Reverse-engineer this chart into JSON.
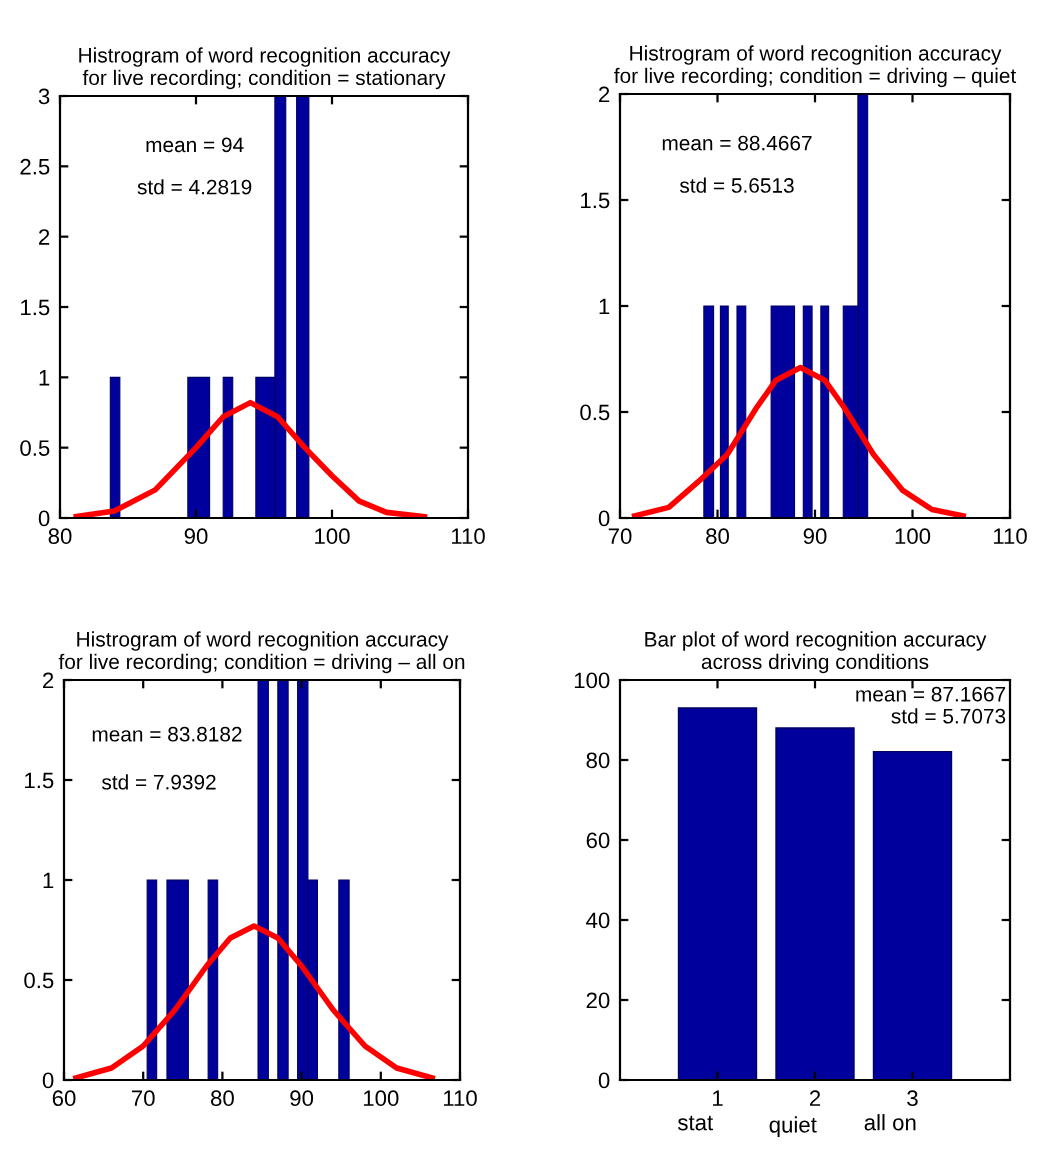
{
  "chart_data": [
    {
      "type": "histogram",
      "title": "Histrogram of word recognition accuracy\nfor live recording; condition = stationary",
      "bins": [
        83.7,
        84.4,
        89.4,
        91.0,
        92.0,
        92.7,
        94.4,
        95.8,
        96.6,
        97.4,
        98.3
      ],
      "values": [
        1,
        0,
        1,
        0,
        1,
        0,
        1,
        3,
        0,
        3
      ],
      "color": "#00009c",
      "series": [
        {
          "type": "line",
          "color": "#ff0000",
          "x": [
            81.2,
            84,
            87,
            90,
            92,
            94,
            96,
            98,
            100,
            102,
            104,
            106.8
          ],
          "values": [
            0.01,
            0.05,
            0.2,
            0.5,
            0.72,
            0.82,
            0.72,
            0.5,
            0.3,
            0.12,
            0.04,
            0.01
          ]
        }
      ],
      "xlim": [
        80,
        110
      ],
      "xticks": [
        80,
        90,
        100,
        110
      ],
      "ylim": [
        0,
        3
      ],
      "yticks": [
        0,
        0.5,
        1,
        1.5,
        2,
        2.5,
        3
      ],
      "annotations": [
        "mean = 94",
        "std = 4.2819"
      ],
      "grid": false
    },
    {
      "type": "histogram",
      "title": "Histrogram of word recognition accuracy\nfor live recording; condition = driving – quiet",
      "bins": [
        78.6,
        79.6,
        80.3,
        81.1,
        82.0,
        82.9,
        85.5,
        87.9,
        88.8,
        89.7,
        90.6,
        91.4,
        92.9,
        94.4,
        95.4
      ],
      "values": [
        1,
        0,
        1,
        0,
        1,
        0,
        1,
        0,
        1,
        0,
        1,
        0,
        1,
        2
      ],
      "color": "#00009c",
      "series": [
        {
          "type": "line",
          "color": "#ff0000",
          "x": [
            71.5,
            75,
            78,
            81,
            84,
            86,
            88.5,
            91,
            93,
            96,
            99,
            102,
            105.2
          ],
          "values": [
            0.01,
            0.05,
            0.17,
            0.3,
            0.52,
            0.65,
            0.71,
            0.65,
            0.52,
            0.3,
            0.13,
            0.04,
            0.01
          ]
        }
      ],
      "xlim": [
        70,
        110
      ],
      "xticks": [
        70,
        80,
        90,
        100,
        110
      ],
      "ylim": [
        0,
        2
      ],
      "yticks": [
        0,
        0.5,
        1,
        1.5,
        2
      ],
      "annotations": [
        "mean = 88.4667",
        "std = 5.6513"
      ],
      "grid": false
    },
    {
      "type": "histogram",
      "title": "Histrogram of word recognition accuracy\nfor live recording; condition = driving – all on",
      "bins": [
        70.5,
        71.7,
        73.0,
        75.7,
        78.2,
        79.4,
        84.5,
        85.8,
        87.0,
        88.3,
        89.5,
        90.8,
        92.0,
        94.7,
        96.0
      ],
      "values": [
        1,
        0,
        1,
        0,
        1,
        0,
        2,
        0,
        2,
        0,
        2,
        1,
        0,
        1
      ],
      "color": "#00009c",
      "series": [
        {
          "type": "line",
          "color": "#ff0000",
          "x": [
            61.5,
            66,
            70,
            74,
            78,
            81,
            84,
            87,
            90,
            94,
            98,
            102,
            106.5
          ],
          "values": [
            0.01,
            0.06,
            0.17,
            0.35,
            0.57,
            0.71,
            0.77,
            0.71,
            0.57,
            0.35,
            0.17,
            0.06,
            0.01
          ]
        }
      ],
      "xlim": [
        60,
        110
      ],
      "xticks": [
        60,
        70,
        80,
        90,
        100,
        110
      ],
      "ylim": [
        0,
        2
      ],
      "yticks": [
        0,
        0.5,
        1,
        1.5,
        2
      ],
      "annotations": [
        "mean = 83.8182",
        "std = 7.9392"
      ],
      "grid": false
    },
    {
      "type": "bar",
      "title": "Bar plot of word recognition accuracy\nacross driving conditions",
      "x": [
        1,
        2,
        3
      ],
      "values": [
        93.0,
        88.0,
        82.1
      ],
      "color": "#00009c",
      "xlim": [
        0,
        4
      ],
      "xticks": [
        1,
        2,
        3
      ],
      "ylim": [
        0,
        100
      ],
      "yticks": [
        0,
        20,
        40,
        60,
        80,
        100
      ],
      "annotations": [
        "mean = 87.1667",
        "std = 5.7073",
        "stat",
        "quiet",
        "all on"
      ],
      "grid": false
    }
  ]
}
